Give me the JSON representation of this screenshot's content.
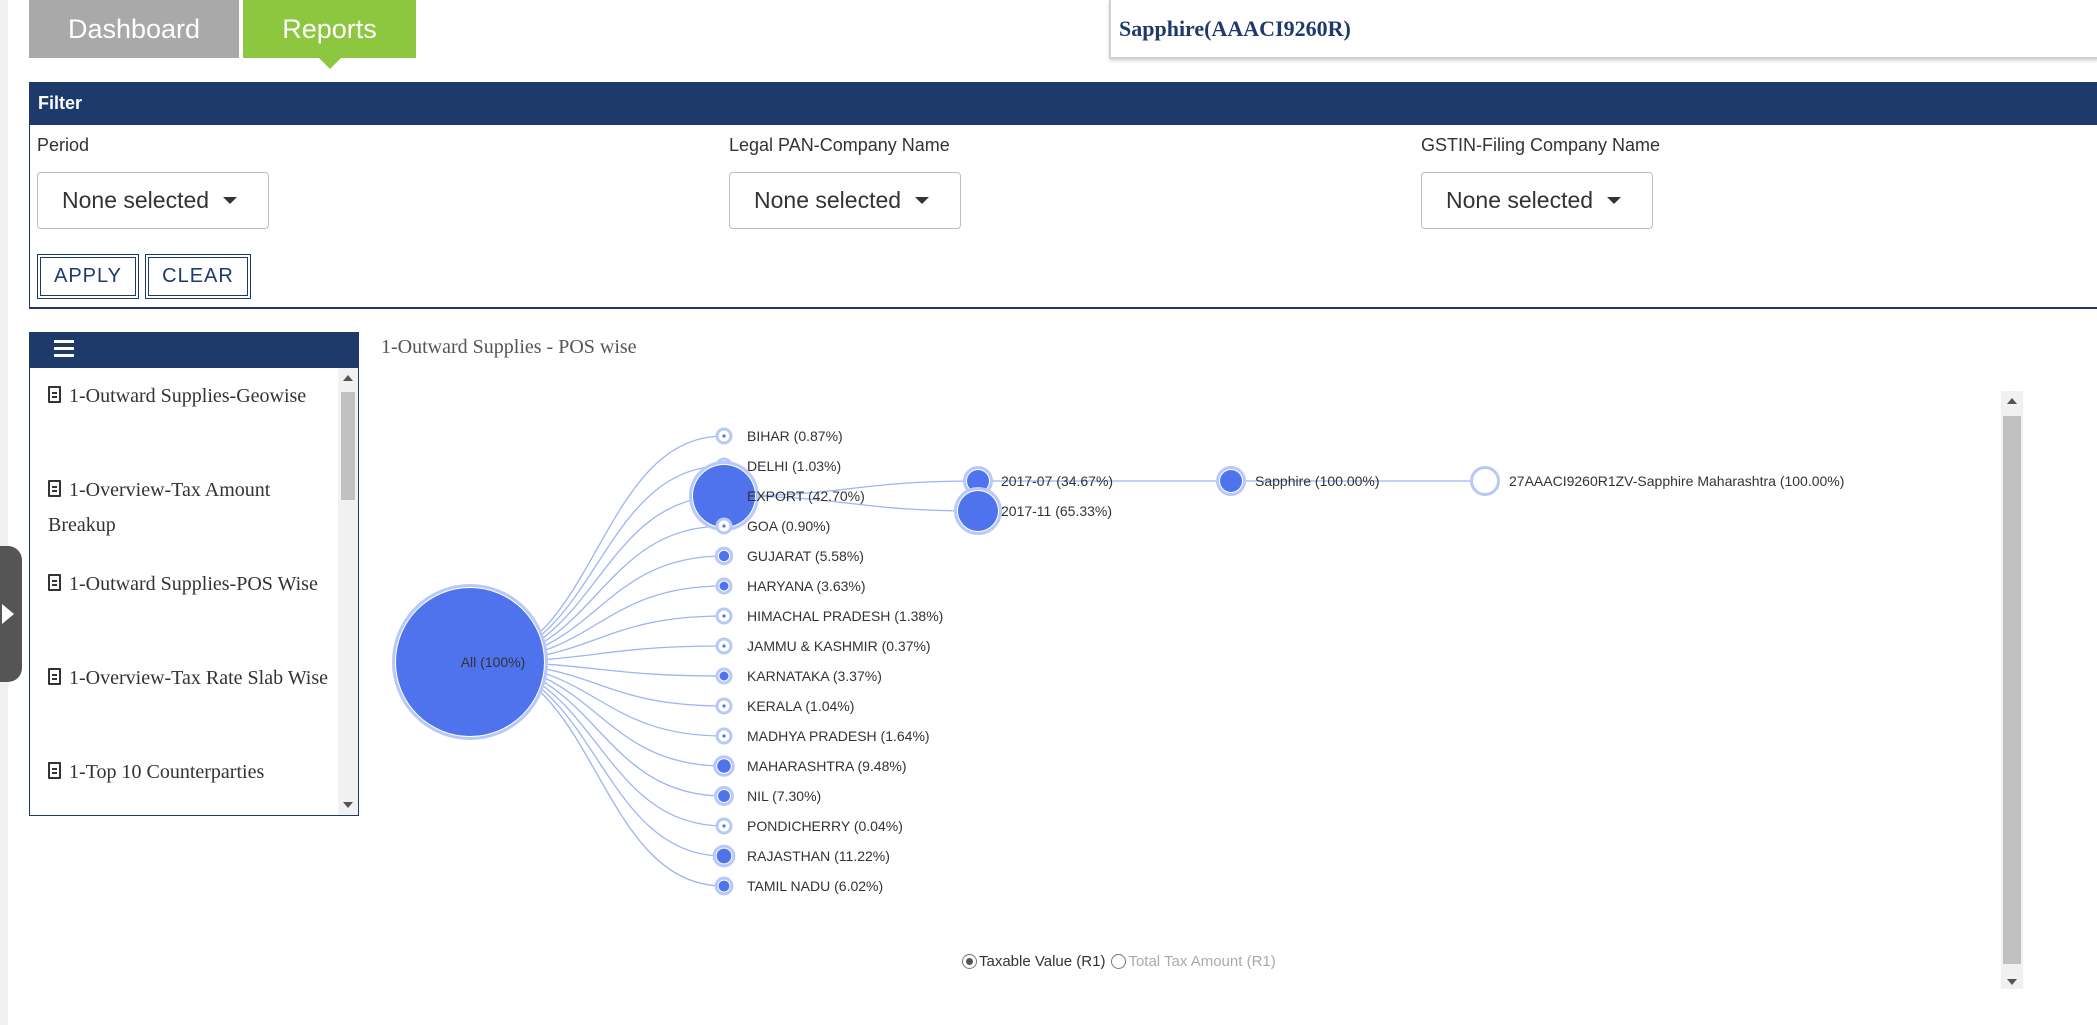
{
  "tabs": [
    {
      "label": "Dashboard"
    },
    {
      "label": "Reports"
    }
  ],
  "company_selector": {
    "value": "Sapphire(AAACI9260R)"
  },
  "filter": {
    "title": "Filter",
    "fields": [
      {
        "label": "Period",
        "value": "None selected"
      },
      {
        "label": "Legal PAN-Company Name",
        "value": "None selected"
      },
      {
        "label": "GSTIN-Filing Company Name",
        "value": "None selected"
      }
    ],
    "apply_label": "APPLY",
    "clear_label": "CLEAR"
  },
  "report_menu": {
    "items": [
      {
        "label": "1-Outward Supplies-Geowise"
      },
      {
        "label": "1-Overview-Tax Amount Breakup"
      },
      {
        "label": "1-Outward Supplies-POS Wise"
      },
      {
        "label": "1-Overview-Tax Rate Slab Wise"
      },
      {
        "label": "1-Top 10 Counterparties"
      }
    ]
  },
  "chart": {
    "title": "1-Outward Supplies - POS wise",
    "breadcrumb": [
      {
        "label": "All",
        "color": "#5b7ff0"
      },
      {
        "label": "EXPORT",
        "color": "#f5d327"
      },
      {
        "label": "2017-07",
        "color": "#e04a35"
      },
      {
        "label": "Sapphire",
        "color": "#f7913a"
      }
    ],
    "node_color": "#4e73ed",
    "link_color": "#9db4f5"
  },
  "chart_data": {
    "type": "tree",
    "root": {
      "label": "All (100%)",
      "share": 100
    },
    "level1": [
      {
        "label": "BIHAR (0.87%)",
        "share": 0.87
      },
      {
        "label": "DELHI (1.03%)",
        "share": 1.03
      },
      {
        "label": "EXPORT (42.70%)",
        "share": 42.7
      },
      {
        "label": "GOA (0.90%)",
        "share": 0.9
      },
      {
        "label": "GUJARAT (5.58%)",
        "share": 5.58
      },
      {
        "label": "HARYANA (3.63%)",
        "share": 3.63
      },
      {
        "label": "HIMACHAL PRADESH (1.38%)",
        "share": 1.38
      },
      {
        "label": "JAMMU & KASHMIR (0.37%)",
        "share": 0.37
      },
      {
        "label": "KARNATAKA (3.37%)",
        "share": 3.37
      },
      {
        "label": "KERALA (1.04%)",
        "share": 1.04
      },
      {
        "label": "MADHYA PRADESH (1.64%)",
        "share": 1.64
      },
      {
        "label": "MAHARASHTRA (9.48%)",
        "share": 9.48
      },
      {
        "label": "NIL (7.30%)",
        "share": 7.3
      },
      {
        "label": "PONDICHERRY (0.04%)",
        "share": 0.04
      },
      {
        "label": "RAJASTHAN (11.22%)",
        "share": 11.22
      },
      {
        "label": "TAMIL NADU (6.02%)",
        "share": 6.02
      }
    ],
    "export_children": [
      {
        "label": "2017-07 (34.67%)",
        "share": 34.67
      },
      {
        "label": "2017-11 (65.33%)",
        "share": 65.33
      }
    ],
    "period_children": [
      {
        "label": "Sapphire (100.00%)",
        "share": 100
      }
    ],
    "company_children": [
      {
        "label": "27AAACI9260R1ZV-Sapphire Maharashtra (100.00%)",
        "share": 100
      }
    ]
  },
  "measure_toggle": {
    "options": [
      {
        "label": "Taxable Value (R1)",
        "selected": true
      },
      {
        "label": "Total Tax Amount (R1)",
        "selected": false
      }
    ]
  }
}
